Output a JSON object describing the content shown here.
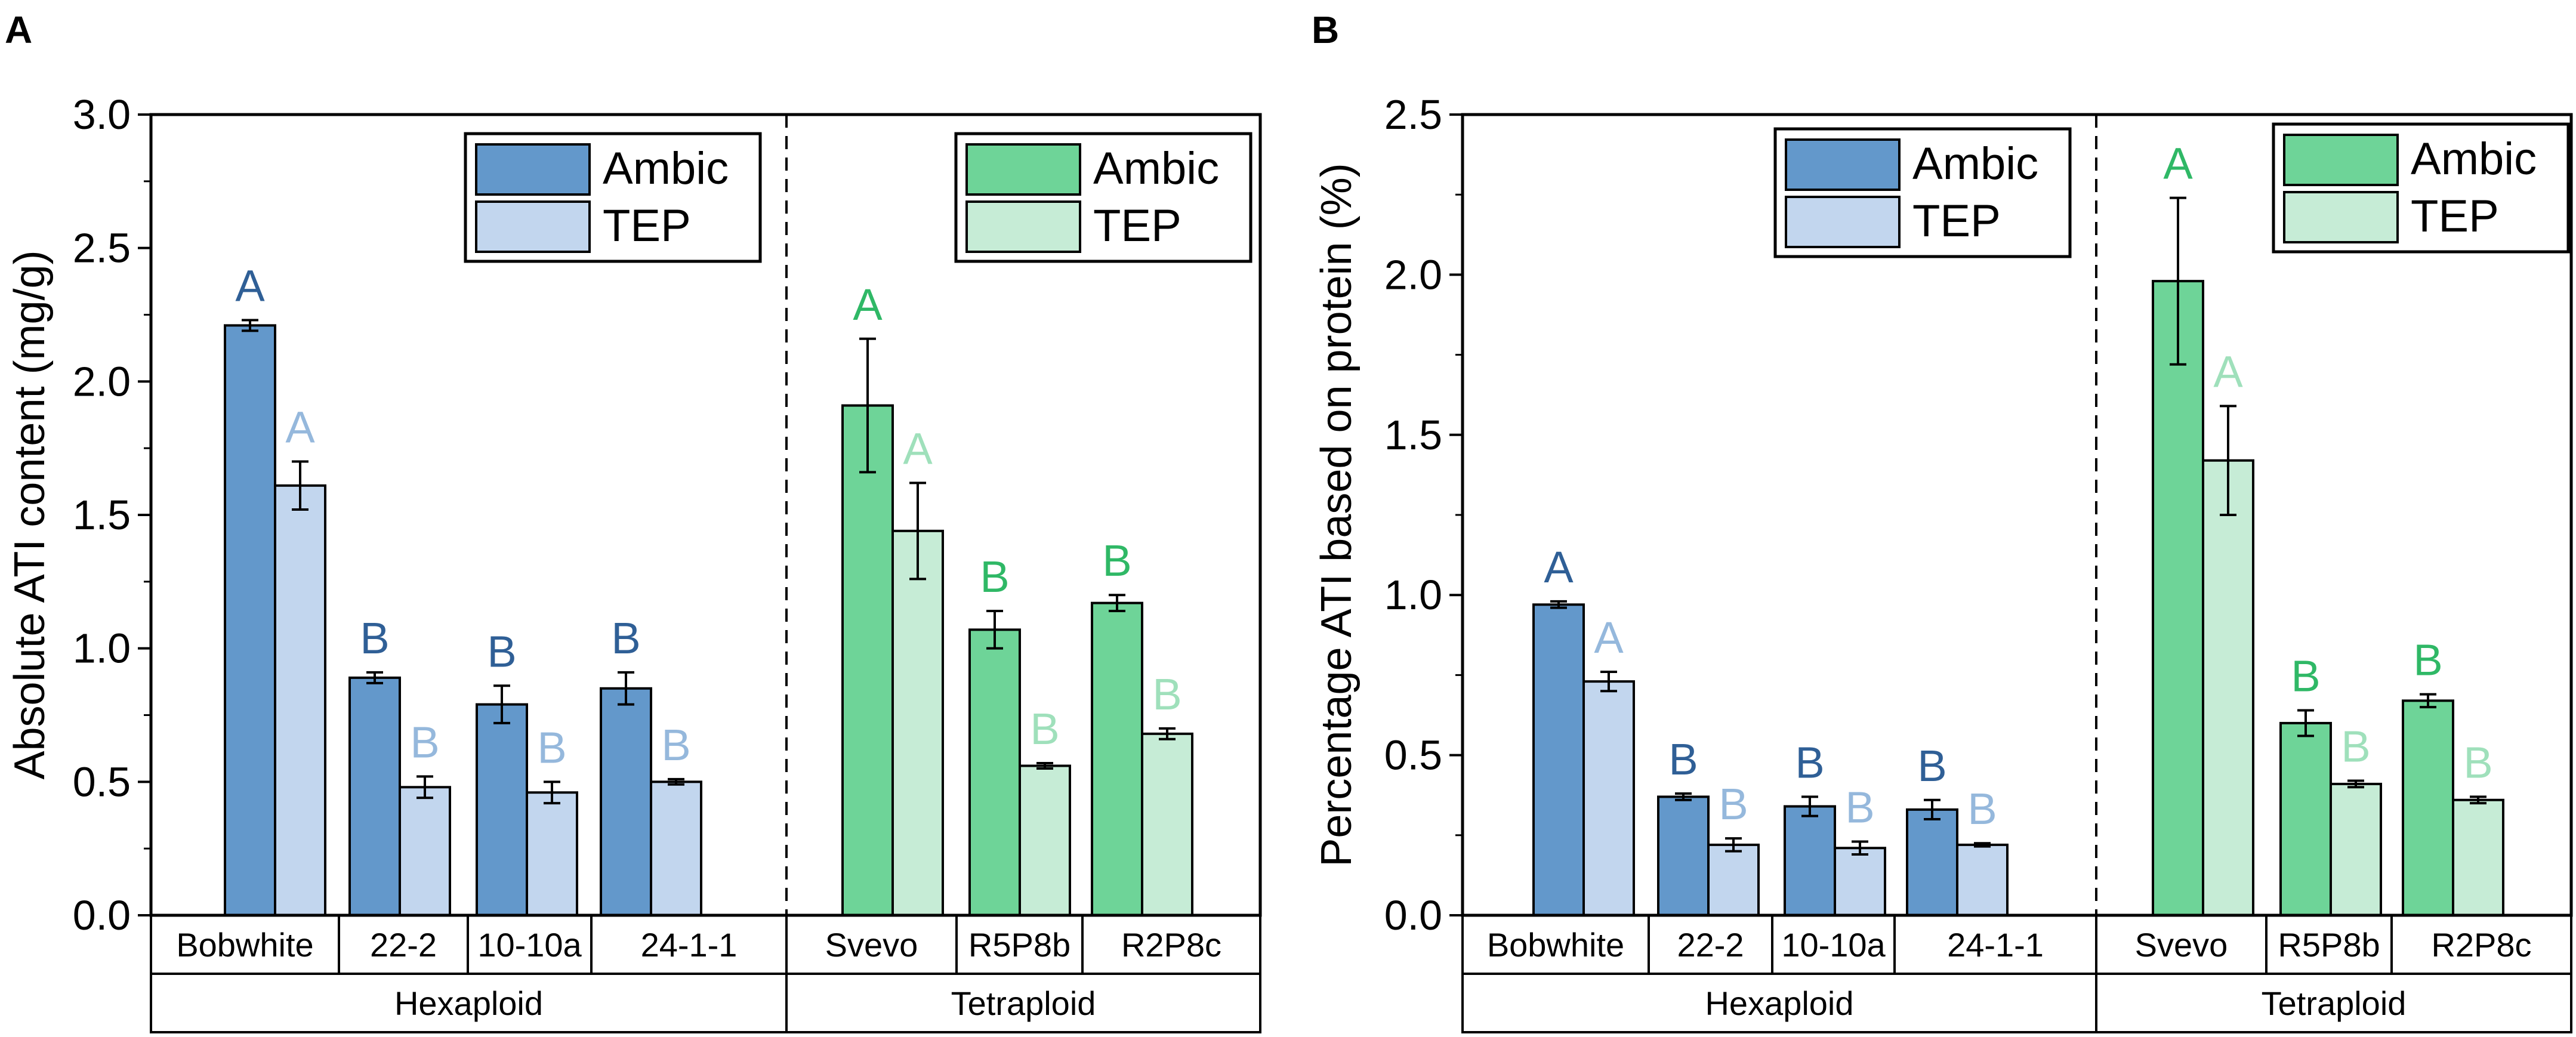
{
  "chart_data": [
    {
      "type": "bar",
      "panel_label": "A",
      "ylabel": "Absolute ATI content (mg/g)",
      "xlabel": "",
      "ylim": [
        0,
        3.0
      ],
      "yticks": [
        0.0,
        0.5,
        1.0,
        1.5,
        2.0,
        2.5,
        3.0
      ],
      "ytick_labels": [
        "0.0",
        "0.5",
        "1.0",
        "1.5",
        "2.0",
        "2.5",
        "3.0"
      ],
      "categories": [
        "Bobwhite",
        "22-2",
        "10-10a",
        "24-1-1",
        "Svevo",
        "R5P8b",
        "R2P8c"
      ],
      "groups": [
        {
          "name": "Hexaploid",
          "categories": [
            "Bobwhite",
            "22-2",
            "10-10a",
            "24-1-1"
          ]
        },
        {
          "name": "Tetraploid",
          "categories": [
            "Svevo",
            "R5P8b",
            "R2P8c"
          ]
        }
      ],
      "series": [
        {
          "name": "Ambic",
          "values": [
            2.21,
            0.89,
            0.79,
            0.85,
            1.91,
            1.07,
            1.17
          ],
          "errors": [
            0.02,
            0.02,
            0.07,
            0.06,
            0.25,
            0.07,
            0.03
          ],
          "letters": [
            "A",
            "B",
            "B",
            "B",
            "A",
            "B",
            "B"
          ]
        },
        {
          "name": "TEP",
          "values": [
            1.61,
            0.48,
            0.46,
            0.5,
            1.44,
            0.56,
            0.68
          ],
          "errors": [
            0.09,
            0.04,
            0.04,
            0.01,
            0.18,
            0.01,
            0.02
          ],
          "letters": [
            "A",
            "B",
            "B",
            "B",
            "A",
            "B",
            "B"
          ]
        }
      ],
      "legends": [
        {
          "group": "Hexaploid",
          "entries": [
            "Ambic",
            "TEP"
          ]
        },
        {
          "group": "Tetraploid",
          "entries": [
            "Ambic",
            "TEP"
          ]
        }
      ]
    },
    {
      "type": "bar",
      "panel_label": "B",
      "ylabel": "Percentage ATI based on protein (%)",
      "xlabel": "",
      "ylim": [
        0,
        2.5
      ],
      "yticks": [
        0.0,
        0.5,
        1.0,
        1.5,
        2.0,
        2.5
      ],
      "ytick_labels": [
        "0.0",
        "0.5",
        "1.0",
        "1.5",
        "2.0",
        "2.5"
      ],
      "categories": [
        "Bobwhite",
        "22-2",
        "10-10a",
        "24-1-1",
        "Svevo",
        "R5P8b",
        "R2P8c"
      ],
      "groups": [
        {
          "name": "Hexaploid",
          "categories": [
            "Bobwhite",
            "22-2",
            "10-10a",
            "24-1-1"
          ]
        },
        {
          "name": "Tetraploid",
          "categories": [
            "Svevo",
            "R5P8b",
            "R2P8c"
          ]
        }
      ],
      "series": [
        {
          "name": "Ambic",
          "values": [
            0.97,
            0.37,
            0.34,
            0.33,
            1.98,
            0.6,
            0.67
          ],
          "errors": [
            0.01,
            0.01,
            0.03,
            0.03,
            0.26,
            0.04,
            0.02
          ],
          "letters": [
            "A",
            "B",
            "B",
            "B",
            "A",
            "B",
            "B"
          ]
        },
        {
          "name": "TEP",
          "values": [
            0.73,
            0.22,
            0.21,
            0.22,
            1.42,
            0.41,
            0.36
          ],
          "errors": [
            0.03,
            0.02,
            0.02,
            0.005,
            0.17,
            0.01,
            0.01
          ],
          "letters": [
            "A",
            "B",
            "B",
            "B",
            "A",
            "B",
            "B"
          ]
        }
      ],
      "legends": [
        {
          "group": "Hexaploid",
          "entries": [
            "Ambic",
            "TEP"
          ]
        },
        {
          "group": "Tetraploid",
          "entries": [
            "Ambic",
            "TEP"
          ]
        }
      ]
    }
  ],
  "colors": {
    "hex_ambic_fill": "#6398cb",
    "hex_tep_fill": "#c2d6ee",
    "hex_ambic_letter": "#2f5f96",
    "hex_tep_letter": "#95b8dc",
    "tet_ambic_fill": "#6ed498",
    "tet_tep_fill": "#c6ecd6",
    "tet_ambic_letter": "#2fb866",
    "tet_tep_letter": "#9fe0bb",
    "axis": "#000000"
  }
}
